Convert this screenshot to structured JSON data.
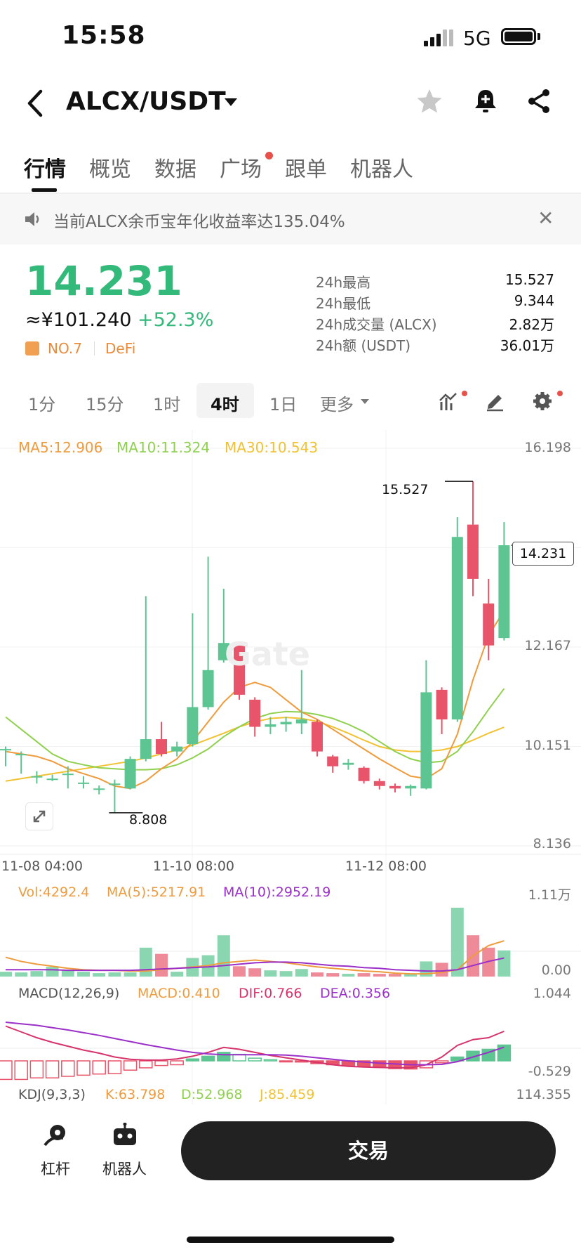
{
  "status_bar": {
    "time": "15:58",
    "network": "5G"
  },
  "header": {
    "title": "ALCX/USDT",
    "icons": [
      "back-icon",
      "caret-down-icon",
      "star-icon",
      "bell-icon",
      "share-icon"
    ]
  },
  "tabs": [
    {
      "label": "行情",
      "active": true
    },
    {
      "label": "概览"
    },
    {
      "label": "数据"
    },
    {
      "label": "广场",
      "dot": true
    },
    {
      "label": "跟单"
    },
    {
      "label": "机器人"
    }
  ],
  "notice": {
    "text": "当前ALCX余币宝年化收益率达135.04%",
    "close": "✕"
  },
  "ticker": {
    "price": "14.231",
    "cny": "≈¥101.240",
    "change": "+52.3%",
    "rank": "NO.7",
    "tag": "DeFi",
    "stats": [
      {
        "label": "24h最高",
        "value": "15.527"
      },
      {
        "label": "24h最低",
        "value": "9.344"
      },
      {
        "label": "24h成交量 (ALCX)",
        "value": "2.82万"
      },
      {
        "label": "24h额 (USDT)",
        "value": "36.01万"
      }
    ]
  },
  "intervals": [
    {
      "label": "1分"
    },
    {
      "label": "15分"
    },
    {
      "label": "1时"
    },
    {
      "label": "4时",
      "active": true
    },
    {
      "label": "1日"
    },
    {
      "label": "更多"
    }
  ],
  "colors": {
    "up": "#5cc592",
    "down": "#e8556a",
    "ma5": "#ef9b3c",
    "ma10": "#8fd14f",
    "ma30": "#f1c232",
    "purple": "#9b30c9",
    "brand_green": "#33b97a"
  },
  "chart_data": {
    "type": "candlestick",
    "watermark": "Gate",
    "ma_legend": {
      "ma5": "MA5:12.906",
      "ma10": "MA10:11.324",
      "ma30": "MA30:10.543"
    },
    "y_axis": [
      "16.198",
      "12.167",
      "10.151",
      "8.136"
    ],
    "x_axis": [
      "11-08 04:00",
      "11-10 08:00",
      "11-12 08:00"
    ],
    "ylim": [
      8.136,
      16.198
    ],
    "high_label": "15.527",
    "low_label": "8.808",
    "last_price": "14.231",
    "candles": [
      [
        10.1,
        10.1,
        10.15,
        9.75
      ],
      [
        10.0,
        10.0,
        10.05,
        9.6
      ],
      [
        9.55,
        9.55,
        9.65,
        9.4
      ],
      [
        9.5,
        9.5,
        9.58,
        9.45
      ],
      [
        9.6,
        9.6,
        9.75,
        9.3
      ],
      [
        9.42,
        9.42,
        9.55,
        9.3
      ],
      [
        9.3,
        9.3,
        9.36,
        9.18
      ],
      [
        9.4,
        9.4,
        9.48,
        8.81
      ],
      [
        9.3,
        9.9,
        9.95,
        9.28
      ],
      [
        9.9,
        10.3,
        13.2,
        9.85
      ],
      [
        10.3,
        10.0,
        10.65,
        9.95
      ],
      [
        10.05,
        10.15,
        10.25,
        9.95
      ],
      [
        10.2,
        10.95,
        12.85,
        10.15
      ],
      [
        10.95,
        11.7,
        14.0,
        10.9
      ],
      [
        11.9,
        12.25,
        13.35,
        11.85
      ],
      [
        12.2,
        11.2,
        12.25,
        11.1
      ],
      [
        11.1,
        10.55,
        11.15,
        10.35
      ],
      [
        10.55,
        10.6,
        10.75,
        10.4
      ],
      [
        10.6,
        10.65,
        10.75,
        10.45
      ],
      [
        10.62,
        10.7,
        11.7,
        10.4
      ],
      [
        10.65,
        10.05,
        10.7,
        9.95
      ],
      [
        9.95,
        9.75,
        9.98,
        9.62
      ],
      [
        9.78,
        9.82,
        9.9,
        9.68
      ],
      [
        9.72,
        9.45,
        9.75,
        9.4
      ],
      [
        9.45,
        9.35,
        9.5,
        9.28
      ],
      [
        9.35,
        9.3,
        9.4,
        9.22
      ],
      [
        9.3,
        9.35,
        9.38,
        9.15
      ],
      [
        9.3,
        11.25,
        11.9,
        9.28
      ],
      [
        11.3,
        10.7,
        11.35,
        10.4
      ],
      [
        10.7,
        14.4,
        14.8,
        10.65
      ],
      [
        14.65,
        13.55,
        15.527,
        13.2
      ],
      [
        13.05,
        12.2,
        13.55,
        11.9
      ],
      [
        12.35,
        14.231,
        14.7,
        12.3
      ]
    ],
    "ma5": [
      10.05,
      10.0,
      9.95,
      9.85,
      9.7,
      9.6,
      9.5,
      9.35,
      9.3,
      9.45,
      9.7,
      9.9,
      10.25,
      10.65,
      11.05,
      11.35,
      11.45,
      11.35,
      11.1,
      10.85,
      10.7,
      10.5,
      10.3,
      10.1,
      9.9,
      9.72,
      9.55,
      9.5,
      9.7,
      10.4,
      11.5,
      12.4,
      12.906
    ],
    "ma10": [
      10.75,
      10.5,
      10.25,
      10.0,
      9.85,
      9.78,
      9.72,
      9.7,
      9.68,
      9.68,
      9.7,
      9.78,
      9.92,
      10.1,
      10.35,
      10.55,
      10.72,
      10.82,
      10.86,
      10.85,
      10.8,
      10.72,
      10.6,
      10.45,
      10.25,
      10.05,
      9.9,
      9.82,
      9.85,
      10.05,
      10.45,
      10.9,
      11.324
    ],
    "ma30": [
      9.45,
      9.5,
      9.55,
      9.6,
      9.65,
      9.7,
      9.75,
      9.8,
      9.85,
      9.92,
      10.0,
      10.08,
      10.18,
      10.3,
      10.42,
      10.55,
      10.65,
      10.72,
      10.74,
      10.72,
      10.66,
      10.55,
      10.42,
      10.28,
      10.15,
      10.08,
      10.05,
      10.05,
      10.08,
      10.15,
      10.28,
      10.42,
      10.543
    ]
  },
  "volume": {
    "legend": {
      "vol": "Vol:4292.4",
      "ma5": "MA(5):5217.91",
      "ma10": "MA(10):2952.19"
    },
    "y_axis": [
      "1.11万",
      "0.00"
    ],
    "values": [
      0.07,
      0.06,
      0.08,
      0.14,
      0.1,
      0.07,
      0.05,
      0.06,
      0.06,
      0.42,
      0.33,
      0.07,
      0.27,
      0.31,
      0.6,
      0.15,
      0.12,
      0.09,
      0.08,
      0.11,
      0.06,
      0.05,
      0.04,
      0.05,
      0.04,
      0.04,
      0.04,
      0.22,
      0.2,
      1.0,
      0.6,
      0.42,
      0.38
    ],
    "ma5": [
      0.28,
      0.22,
      0.18,
      0.15,
      0.12,
      0.1,
      0.09,
      0.09,
      0.08,
      0.08,
      0.1,
      0.12,
      0.14,
      0.16,
      0.2,
      0.22,
      0.24,
      0.22,
      0.2,
      0.17,
      0.14,
      0.12,
      0.1,
      0.08,
      0.07,
      0.05,
      0.04,
      0.04,
      0.06,
      0.1,
      0.3,
      0.45,
      0.52
    ],
    "ma10": [
      0.1,
      0.1,
      0.1,
      0.1,
      0.09,
      0.09,
      0.09,
      0.09,
      0.09,
      0.1,
      0.11,
      0.12,
      0.13,
      0.14,
      0.16,
      0.18,
      0.2,
      0.21,
      0.21,
      0.2,
      0.18,
      0.16,
      0.15,
      0.13,
      0.12,
      0.1,
      0.09,
      0.08,
      0.08,
      0.1,
      0.16,
      0.22,
      0.27
    ]
  },
  "macd": {
    "legend": {
      "label": "MACD(12,26,9)",
      "macd": "MACD:0.410",
      "dif": "DIF:0.766",
      "dea": "DEA:0.356"
    },
    "y_axis": [
      "1.044",
      "-0.529"
    ],
    "hist": [
      -0.48,
      -0.48,
      -0.44,
      -0.44,
      -0.4,
      -0.37,
      -0.34,
      -0.33,
      -0.24,
      -0.18,
      -0.12,
      -0.1,
      0.05,
      0.12,
      0.22,
      0.17,
      0.07,
      0.03,
      -0.02,
      -0.03,
      -0.07,
      -0.1,
      -0.13,
      -0.15,
      -0.17,
      -0.2,
      -0.21,
      -0.18,
      -0.05,
      0.1,
      0.25,
      0.3,
      0.41
    ],
    "dif": [
      0.9,
      0.75,
      0.6,
      0.48,
      0.38,
      0.28,
      0.2,
      0.1,
      0.04,
      0.02,
      0.02,
      0.05,
      0.12,
      0.22,
      0.35,
      0.3,
      0.22,
      0.14,
      0.08,
      0.02,
      -0.04,
      -0.1,
      -0.14,
      -0.16,
      -0.17,
      -0.18,
      -0.18,
      -0.1,
      0.1,
      0.4,
      0.55,
      0.6,
      0.766
    ],
    "dea": [
      1.0,
      0.96,
      0.92,
      0.86,
      0.8,
      0.73,
      0.66,
      0.58,
      0.5,
      0.42,
      0.35,
      0.28,
      0.22,
      0.18,
      0.16,
      0.16,
      0.16,
      0.16,
      0.15,
      0.12,
      0.08,
      0.04,
      0.0,
      -0.03,
      -0.06,
      -0.08,
      -0.1,
      -0.1,
      -0.09,
      -0.02,
      0.1,
      0.22,
      0.356
    ]
  },
  "kdj": {
    "legend": {
      "label": "KDJ(9,3,3)",
      "k": "K:63.798",
      "d": "D:52.968",
      "j": "J:85.459"
    },
    "y_axis": "114.355"
  },
  "bottom_bar": {
    "leverage": "杠杆",
    "bot": "机器人",
    "trade": "交易"
  }
}
